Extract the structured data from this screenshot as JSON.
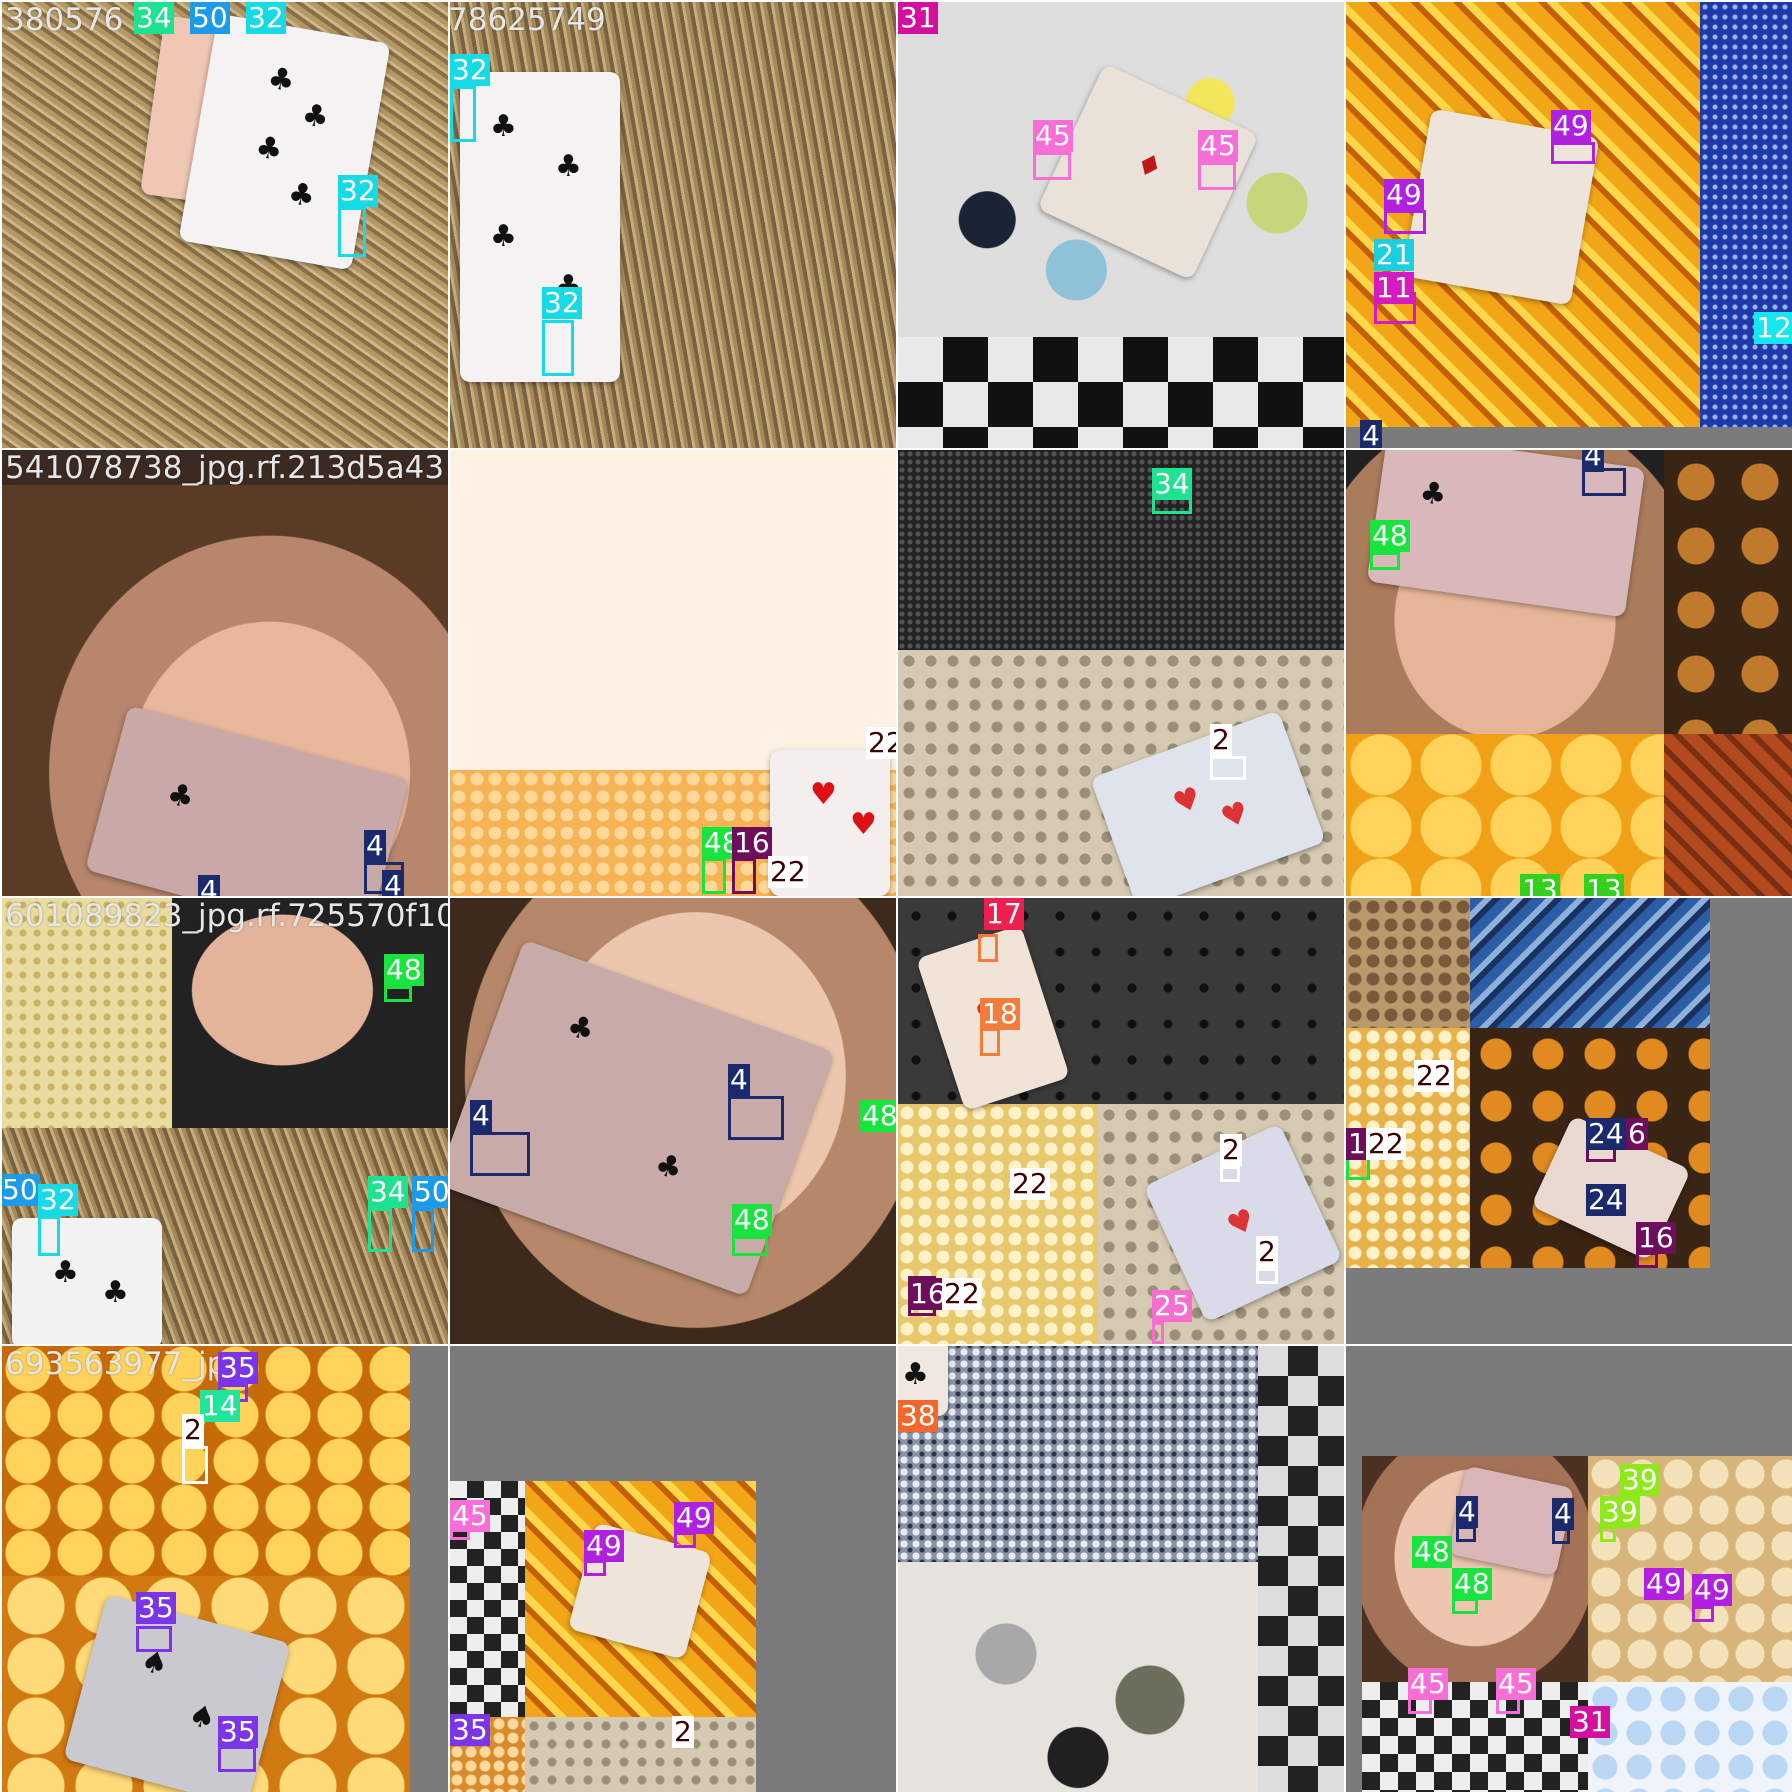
{
  "colors": {
    "34": "#1de28f",
    "50": "#1b9bea",
    "32": "#16dbe6",
    "31": "#d40fa0",
    "45": "#f76fd6",
    "49": "#b11fe0",
    "21": "#1ad0e0",
    "11": "#d41ac0",
    "12": "#15e6f0",
    "4": "#1a2a6c",
    "48": "#19e33e",
    "22": "#ffffff",
    "16": "#6e0d5c",
    "2": "#ffffff",
    "17": "#ef1f4f",
    "18": "#f57b3a",
    "13": "#33d11b",
    "24": "#1a2a6c",
    "25": "#f86ed0",
    "35": "#7a35e8",
    "14": "#1ee59b",
    "38": "#f5662a",
    "39": "#8fe81a"
  },
  "tiles": [
    {
      "title": "380576",
      "labels": [
        "34",
        "50",
        "32",
        "32"
      ]
    },
    {
      "title": "78625749",
      "labels": [
        "32",
        "32"
      ]
    },
    {
      "title": "",
      "labels": [
        "31",
        "45",
        "45"
      ]
    },
    {
      "title": "",
      "labels": [
        "49",
        "49",
        "21",
        "11",
        "12",
        "4"
      ]
    },
    {
      "title": "541078738_jpg.rf.213d5a43",
      "labels": [
        "4",
        "4",
        "4"
      ]
    },
    {
      "title": "",
      "labels": [
        "22",
        "48",
        "16",
        "22"
      ]
    },
    {
      "title": "",
      "labels": [
        "34",
        "2"
      ]
    },
    {
      "title": "",
      "labels": [
        "4",
        "48",
        "13",
        "13"
      ]
    },
    {
      "title": "601089823_jpg.rf.725570f10",
      "labels": [
        "48",
        "50",
        "32",
        "34",
        "50"
      ]
    },
    {
      "title": "",
      "labels": [
        "4",
        "4",
        "48",
        "48"
      ]
    },
    {
      "title": "",
      "labels": [
        "17",
        "18",
        "22",
        "16",
        "22",
        "2",
        "2",
        "25"
      ]
    },
    {
      "title": "",
      "labels": [
        "22",
        "1",
        "22",
        "24",
        "6",
        "24",
        "16"
      ]
    },
    {
      "title": "693563977_jp",
      "labels": [
        "35",
        "14",
        "2",
        "35",
        "35"
      ]
    },
    {
      "title": "",
      "labels": [
        "45",
        "49",
        "49",
        "35",
        "2"
      ]
    },
    {
      "title": "",
      "labels": [
        "38"
      ]
    },
    {
      "title": "",
      "labels": [
        "39",
        "4",
        "4",
        "48",
        "48",
        "39",
        "49",
        "49",
        "45",
        "45",
        "31"
      ]
    }
  ],
  "icons": {
    "club": "club-icon",
    "heart": "heart-icon",
    "spade": "spade-icon",
    "diamond": "diamond-icon"
  }
}
